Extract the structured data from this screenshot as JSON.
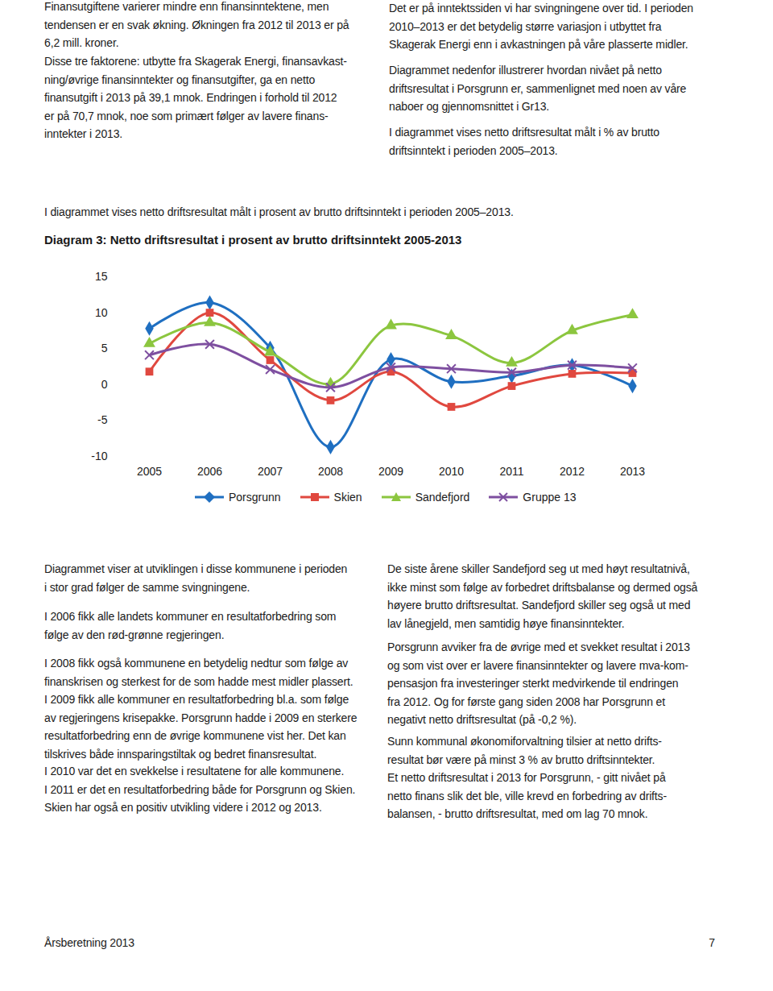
{
  "document": {
    "top_left": [
      [
        "Finansutgiftene varierer mindre enn finansinntektene, men",
        "tendensen er en svak økning. Økningen fra 2012 til 2013 er på",
        "6,2 mill. kroner."
      ],
      [
        "Disse tre faktorene: utbytte fra Skagerak Energi, finansavkast-",
        "ning/øvrige finansinntekter og finansutgifter, ga en netto",
        "finansutgift i 2013 på 39,1 mnok. Endringen i forhold til 2012",
        "er på 70,7 mnok, noe som primært følger av lavere finans-",
        "inntekter i 2013."
      ]
    ],
    "top_right": [
      [
        "Det er på inntektssiden vi har svingningene over tid. I perioden",
        "2010–2013 er det betydelig større variasjon i utbyttet fra",
        "Skagerak Energi enn i avkastningen på våre plasserte midler."
      ],
      [
        "Diagrammet nedenfor illustrerer hvordan nivået på netto",
        "driftsresultat i Porsgrunn er, sammenlignet med noen av våre",
        "naboer og gjennomsnittet i Gr13."
      ],
      [
        "I diagrammet vises netto driftsresultat målt i % av brutto",
        "driftsinntekt i perioden 2005–2013."
      ]
    ],
    "intro": "I diagrammet vises netto driftsresultat målt i prosent av brutto driftsinntekt i perioden 2005–2013.",
    "bottom_left": [
      [
        "Diagrammet viser at utviklingen i disse kommunene i perioden",
        "i stor grad følger de samme svingningene."
      ],
      [
        "I 2006 fikk alle landets kommuner en resultatforbedring som",
        "følge av den rød-grønne regjeringen."
      ],
      [
        "I 2008 fikk også kommunene en betydelig nedtur som følge av",
        "finanskrisen og sterkest for de som hadde mest midler plassert.",
        "I 2009 fikk alle kommuner en resultatforbedring bl.a. som følge",
        "av regjeringens krisepakke. Porsgrunn hadde i 2009 en sterkere",
        "resultatforbedring enn de øvrige kommunene vist her. Det kan",
        "tilskrives både innsparingstiltak og bedret finansresultat."
      ],
      [
        "I 2010 var det en svekkelse i resultatene for alle kommunene.",
        "I 2011 er det en resultatforbedring både for Porsgrunn og Skien.",
        "Skien har også en positiv utvikling videre i 2012 og 2013."
      ]
    ],
    "bottom_right": [
      [
        "De siste årene skiller Sandefjord seg ut med høyt resultatnivå,",
        "ikke minst som følge av forbedret driftsbalanse og dermed også",
        "høyere brutto driftsresultat. Sandefjord skiller seg også ut med",
        "lav lånegjeld, men samtidig høye finansinntekter."
      ],
      [
        "Porsgrunn avviker fra de øvrige med et svekket resultat i 2013",
        "og som vist over er lavere finansinntekter og lavere mva-kom-",
        "pensasjon fra investeringer sterkt medvirkende til endringen",
        "fra 2012. Og for første gang siden 2008 har Porsgrunn et",
        "negativt netto driftsresultat (på -0,2 %)."
      ],
      [
        "Sunn kommunal økonomiforvaltning tilsier at netto drifts-",
        "resultat bør være på minst 3 % av brutto driftsinntekter.",
        "Et netto driftsresultat i 2013 for Porsgrunn, - gitt nivået på",
        "netto finans slik det ble, ville krevd en forbedring av drifts-",
        "balansen, - brutto driftsresultat, med om lag 70 mnok."
      ]
    ],
    "footer": {
      "left": "Årsberetning 2013",
      "page": "7"
    }
  },
  "chart_data": {
    "type": "line",
    "title": "Diagram 3: Netto driftsresultat i prosent av brutto driftsinntekt 2005-2013",
    "categories": [
      "2005",
      "2006",
      "2007",
      "2008",
      "2009",
      "2010",
      "2011",
      "2012",
      "2013"
    ],
    "series": [
      {
        "name": "Porsgrunn",
        "color": "#1f6fc1",
        "marker": "diamond",
        "values": [
          7.8,
          11.4,
          5.1,
          -8.7,
          3.5,
          0.4,
          1.2,
          2.7,
          -0.2
        ]
      },
      {
        "name": "Skien",
        "color": "#e0483f",
        "marker": "square",
        "values": [
          1.8,
          10.0,
          3.4,
          -2.2,
          1.8,
          -3.1,
          -0.2,
          1.5,
          1.6
        ]
      },
      {
        "name": "Sandefjord",
        "color": "#8cc63f",
        "marker": "triangle",
        "values": [
          5.7,
          8.6,
          4.5,
          0.1,
          8.2,
          6.8,
          3.0,
          7.5,
          9.7
        ]
      },
      {
        "name": "Gruppe 13",
        "color": "#7e4fa0",
        "marker": "times",
        "values": [
          4.1,
          5.6,
          2.1,
          -0.4,
          2.4,
          2.2,
          1.7,
          2.7,
          2.3
        ]
      }
    ],
    "ylim": [
      -10,
      15
    ],
    "yticks": [
      -10,
      -5,
      0,
      5,
      10,
      15
    ],
    "grid": false,
    "legend": "bottom",
    "line_style": "solid"
  }
}
